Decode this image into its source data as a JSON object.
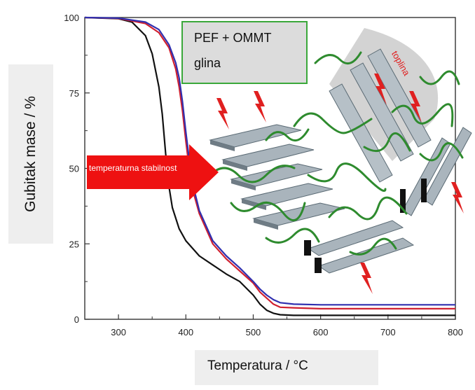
{
  "chart_data": {
    "type": "line",
    "title": "",
    "xlabel": "Temperatura / °C",
    "ylabel": "Gubitak mase / %",
    "xlim": [
      250,
      800
    ],
    "ylim": [
      0,
      100
    ],
    "xticks": [
      300,
      400,
      500,
      600,
      700,
      800
    ],
    "yticks": [
      0,
      25,
      50,
      75,
      100
    ],
    "grid": false,
    "series": [
      {
        "color": "#111111",
        "x": [
          250,
          300,
          320,
          340,
          350,
          360,
          365,
          370,
          375,
          380,
          390,
          400,
          420,
          440,
          460,
          480,
          500,
          510,
          520,
          530,
          540,
          560,
          600,
          700,
          800
        ],
        "y": [
          100,
          99.6,
          98.5,
          94,
          88,
          77,
          68,
          55,
          44,
          37,
          30,
          26,
          21,
          18,
          15,
          12.5,
          8,
          5,
          3,
          2,
          1.5,
          1.3,
          1.3,
          1.3,
          1.3
        ]
      },
      {
        "color": "#d02030",
        "x": [
          250,
          300,
          340,
          360,
          375,
          385,
          390,
          395,
          400,
          405,
          410,
          420,
          440,
          460,
          480,
          500,
          510,
          520,
          530,
          540,
          560,
          600,
          700,
          800
        ],
        "y": [
          100,
          99.7,
          98,
          95,
          90,
          83,
          77,
          69,
          59,
          50,
          43,
          35,
          25,
          20,
          16,
          12,
          9,
          7,
          5,
          4,
          3.8,
          3.5,
          3.5,
          3.5
        ]
      },
      {
        "color": "#3030b0",
        "x": [
          250,
          300,
          340,
          360,
          375,
          385,
          390,
          395,
          400,
          405,
          410,
          420,
          440,
          460,
          480,
          500,
          510,
          520,
          530,
          540,
          560,
          600,
          700,
          800
        ],
        "y": [
          100,
          99.8,
          98.5,
          96,
          91,
          85,
          80,
          72,
          62,
          53,
          45,
          36,
          26,
          21,
          17,
          12.5,
          10,
          8,
          6.5,
          5.5,
          5,
          4.8,
          4.8,
          4.8
        ]
      }
    ],
    "annotations": {
      "legend_line1": "PEF + OMMT",
      "legend_line2": "glina",
      "arrow_text": "temperaturna stabilnost",
      "heat_label": "toplina"
    }
  }
}
